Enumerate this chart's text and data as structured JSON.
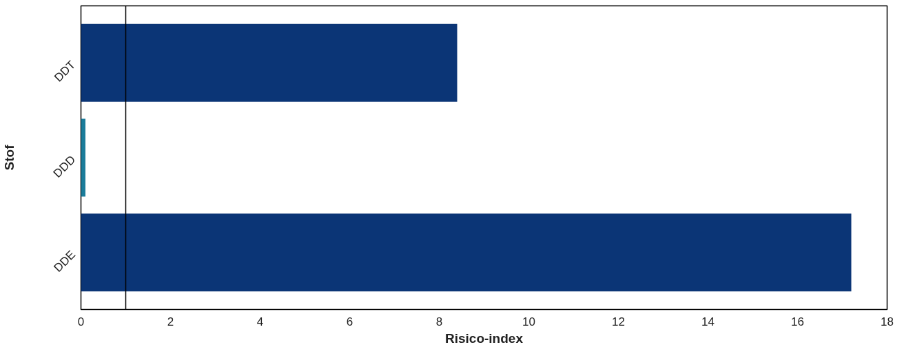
{
  "chart_data": {
    "type": "bar",
    "orientation": "horizontal",
    "xlabel": "Risico-index",
    "ylabel": "Stof",
    "categories": [
      "DDT",
      "DDD",
      "DDE"
    ],
    "values": [
      8.4,
      0.1,
      17.2
    ],
    "colors": [
      "#0b3576",
      "#1b7c9a",
      "#0b3576"
    ],
    "xlim": [
      0,
      18
    ],
    "xticks": [
      0,
      2,
      4,
      6,
      8,
      10,
      12,
      14,
      16,
      18
    ],
    "ref_lines": [
      {
        "axis": "x",
        "value": 1,
        "color": "#000000"
      }
    ],
    "grid": false
  }
}
